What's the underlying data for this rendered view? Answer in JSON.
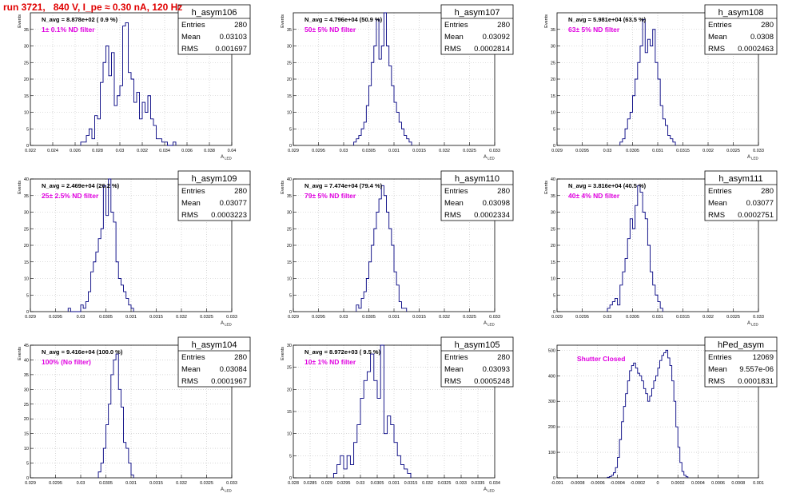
{
  "page": {
    "title": "run 3721,   840 V, I_pe ≈ 0.30 nA, 120 Hz"
  },
  "style": {
    "frame": "#000000",
    "hist": "#000080",
    "grid": "#bfbfbf",
    "annotation": "#e000e0",
    "title_red": "#e00000"
  },
  "chart_data": [
    {
      "type": "histogram",
      "name": "h_asym106",
      "stats": {
        "entries_label": "Entries",
        "entries": "280",
        "mean_label": "Mean",
        "mean": "0.03103",
        "rms_label": "RMS",
        "rms": "0.001697"
      },
      "avg_text": "N_avg = 8.878e+02 ( 0.9 %)",
      "filter_text": "1± 0.1% ND filter",
      "ylabel": "Events",
      "xlabel": "A_LED",
      "xlim": [
        0.022,
        0.04
      ],
      "ylim": [
        0,
        40
      ],
      "grid": true,
      "xticks": [
        0.022,
        0.024,
        0.026,
        0.028,
        0.03,
        0.032,
        0.034,
        0.036,
        0.038,
        0.04
      ],
      "xtick_labels": [
        "0.022",
        "0.024",
        "0.026",
        "0.028",
        "0.03",
        "0.032",
        "0.034",
        "0.036",
        "0.038",
        "0.04"
      ],
      "yticks": [
        0,
        5,
        10,
        15,
        20,
        25,
        30,
        35
      ],
      "ytick_labels": [
        "0",
        "5",
        "10",
        "15",
        "20",
        "25",
        "30",
        "35"
      ],
      "bin_start": 0.0265,
      "bin_width": 0.00025,
      "values": [
        1,
        1,
        3,
        5,
        2,
        9,
        8,
        19,
        25,
        30,
        21,
        28,
        12,
        15,
        18,
        36,
        37,
        22,
        20,
        13,
        16,
        8,
        13,
        10,
        15,
        8,
        6,
        2,
        2,
        1,
        1,
        0,
        0,
        1
      ]
    },
    {
      "type": "histogram",
      "name": "h_asym107",
      "stats": {
        "entries_label": "Entries",
        "entries": "280",
        "mean_label": "Mean",
        "mean": "0.03092",
        "rms_label": "RMS",
        "rms": "0.0002814"
      },
      "avg_text": "N_avg = 4.796e+04 (50.9 %)",
      "filter_text": "50± 5% ND filter",
      "ylabel": "Events",
      "xlabel": "A_LED",
      "xlim": [
        0.029,
        0.033
      ],
      "ylim": [
        0,
        40
      ],
      "grid": true,
      "xticks": [
        0.029,
        0.0295,
        0.03,
        0.0305,
        0.031,
        0.0315,
        0.032,
        0.0325,
        0.033
      ],
      "xtick_labels": [
        "0.029",
        "0.0295",
        "0.03",
        "0.0305",
        "0.031",
        "0.0315",
        "0.032",
        "0.0325",
        "0.033"
      ],
      "yticks": [
        0,
        5,
        10,
        15,
        20,
        25,
        30,
        35
      ],
      "ytick_labels": [
        "0",
        "5",
        "10",
        "15",
        "20",
        "25",
        "30",
        "35"
      ],
      "bin_start": 0.0302,
      "bin_width": 5e-05,
      "values": [
        1,
        2,
        3,
        5,
        7,
        12,
        18,
        25,
        30,
        38,
        26,
        30,
        40,
        30,
        24,
        18,
        13,
        10,
        7,
        5,
        3,
        2,
        1
      ]
    },
    {
      "type": "histogram",
      "name": "h_asym108",
      "stats": {
        "entries_label": "Entries",
        "entries": "280",
        "mean_label": "Mean",
        "mean": "0.0308",
        "rms_label": "RMS",
        "rms": "0.0002463"
      },
      "avg_text": "N_avg = 5.981e+04 (63.5 %)",
      "filter_text": "63± 5% ND filter",
      "ylabel": "Events",
      "xlabel": "A_LED",
      "xlim": [
        0.029,
        0.033
      ],
      "ylim": [
        0,
        40
      ],
      "grid": true,
      "xticks": [
        0.029,
        0.0295,
        0.03,
        0.0305,
        0.031,
        0.0315,
        0.032,
        0.0325,
        0.033
      ],
      "xtick_labels": [
        "0.029",
        "0.0295",
        "0.03",
        "0.0305",
        "0.031",
        "0.0315",
        "0.032",
        "0.0325",
        "0.033"
      ],
      "yticks": [
        0,
        5,
        10,
        15,
        20,
        25,
        30,
        35
      ],
      "ytick_labels": [
        "0",
        "5",
        "10",
        "15",
        "20",
        "25",
        "30",
        "35"
      ],
      "bin_start": 0.03025,
      "bin_width": 5e-05,
      "values": [
        1,
        2,
        5,
        8,
        10,
        15,
        20,
        25,
        30,
        38,
        28,
        32,
        30,
        35,
        25,
        20,
        12,
        8,
        6,
        3,
        2,
        1
      ]
    },
    {
      "type": "histogram",
      "name": "h_asym109",
      "stats": {
        "entries_label": "Entries",
        "entries": "280",
        "mean_label": "Mean",
        "mean": "0.03077",
        "rms_label": "RMS",
        "rms": "0.0003223"
      },
      "avg_text": "N_avg = 2.469e+04 (26.2 %)",
      "filter_text": "25± 2.5% ND filter",
      "ylabel": "Events",
      "xlabel": "A_LED",
      "xlim": [
        0.029,
        0.033
      ],
      "ylim": [
        0,
        40
      ],
      "grid": true,
      "xticks": [
        0.029,
        0.0295,
        0.03,
        0.0305,
        0.031,
        0.0315,
        0.032,
        0.0325,
        0.033
      ],
      "xtick_labels": [
        "0.029",
        "0.0295",
        "0.03",
        "0.0305",
        "0.031",
        "0.0315",
        "0.032",
        "0.0325",
        "0.033"
      ],
      "yticks": [
        0,
        5,
        10,
        15,
        20,
        25,
        30,
        35,
        40
      ],
      "ytick_labels": [
        "0",
        "5",
        "10",
        "15",
        "20",
        "25",
        "30",
        "35",
        "40"
      ],
      "bin_start": 0.02975,
      "bin_width": 5e-05,
      "values": [
        1,
        0,
        0,
        0,
        0,
        2,
        1,
        3,
        6,
        12,
        15,
        18,
        22,
        25,
        38,
        29,
        40,
        30,
        27,
        15,
        10,
        8,
        6,
        4,
        2,
        1
      ]
    },
    {
      "type": "histogram",
      "name": "h_asym110",
      "stats": {
        "entries_label": "Entries",
        "entries": "280",
        "mean_label": "Mean",
        "mean": "0.03098",
        "rms_label": "RMS",
        "rms": "0.0002334"
      },
      "avg_text": "N_avg = 7.474e+04 (79.4 %)",
      "filter_text": "79± 5% ND filter",
      "ylabel": "Events",
      "xlabel": "A_LED",
      "xlim": [
        0.029,
        0.033
      ],
      "ylim": [
        0,
        40
      ],
      "grid": true,
      "xticks": [
        0.029,
        0.0295,
        0.03,
        0.0305,
        0.031,
        0.0315,
        0.032,
        0.0325,
        0.033
      ],
      "xtick_labels": [
        "0.029",
        "0.0295",
        "0.03",
        "0.0305",
        "0.031",
        "0.0315",
        "0.032",
        "0.0325",
        "0.033"
      ],
      "yticks": [
        0,
        5,
        10,
        15,
        20,
        25,
        30,
        35,
        40
      ],
      "ytick_labels": [
        "0",
        "5",
        "10",
        "15",
        "20",
        "25",
        "30",
        "35",
        "40"
      ],
      "bin_start": 0.03025,
      "bin_width": 5e-05,
      "values": [
        2,
        1,
        4,
        6,
        10,
        15,
        20,
        25,
        30,
        34,
        38,
        35,
        30,
        25,
        20,
        12,
        8,
        3,
        1,
        1
      ]
    },
    {
      "type": "histogram",
      "name": "h_asym111",
      "stats": {
        "entries_label": "Entries",
        "entries": "280",
        "mean_label": "Mean",
        "mean": "0.03077",
        "rms_label": "RMS",
        "rms": "0.0002751"
      },
      "avg_text": "N_avg = 3.816e+04 (40.5 %)",
      "filter_text": "40± 4% ND filter",
      "ylabel": "Events",
      "xlabel": "A_LED",
      "xlim": [
        0.029,
        0.033
      ],
      "ylim": [
        0,
        40
      ],
      "grid": true,
      "xticks": [
        0.029,
        0.0295,
        0.03,
        0.0305,
        0.031,
        0.0315,
        0.032,
        0.0325,
        0.033
      ],
      "xtick_labels": [
        "0.029",
        "0.0295",
        "0.03",
        "0.0305",
        "0.031",
        "0.0315",
        "0.032",
        "0.0325",
        "0.033"
      ],
      "yticks": [
        0,
        5,
        10,
        15,
        20,
        25,
        30,
        35,
        40
      ],
      "ytick_labels": [
        "0",
        "5",
        "10",
        "15",
        "20",
        "25",
        "30",
        "35",
        "40"
      ],
      "bin_start": 0.03,
      "bin_width": 5e-05,
      "values": [
        1,
        2,
        3,
        4,
        2,
        8,
        12,
        16,
        22,
        28,
        25,
        32,
        38,
        36,
        30,
        28,
        20,
        12,
        8,
        5,
        3,
        1
      ]
    },
    {
      "type": "histogram",
      "name": "h_asym104",
      "stats": {
        "entries_label": "Entries",
        "entries": "280",
        "mean_label": "Mean",
        "mean": "0.03084",
        "rms_label": "RMS",
        "rms": "0.0001967"
      },
      "avg_text": "N_avg = 9.416e+04 (100.0 %)",
      "filter_text": "100% (No filter)",
      "ylabel": "Events",
      "xlabel": "A_LED",
      "xlim": [
        0.029,
        0.033
      ],
      "ylim": [
        0,
        45
      ],
      "grid": true,
      "xticks": [
        0.029,
        0.0295,
        0.03,
        0.0305,
        0.031,
        0.0315,
        0.032,
        0.0325,
        0.033
      ],
      "xtick_labels": [
        "0.029",
        "0.0295",
        "0.03",
        "0.0305",
        "0.031",
        "0.0315",
        "0.032",
        "0.0325",
        "0.033"
      ],
      "yticks": [
        0,
        5,
        10,
        15,
        20,
        25,
        30,
        35,
        40,
        45
      ],
      "ytick_labels": [
        "0",
        "5",
        "10",
        "15",
        "20",
        "25",
        "30",
        "35",
        "40",
        "45"
      ],
      "bin_start": 0.03035,
      "bin_width": 5e-05,
      "values": [
        2,
        5,
        10,
        18,
        25,
        35,
        40,
        42,
        30,
        24,
        12,
        10,
        5,
        1
      ]
    },
    {
      "type": "histogram",
      "name": "h_asym105",
      "stats": {
        "entries_label": "Entries",
        "entries": "280",
        "mean_label": "Mean",
        "mean": "0.03093",
        "rms_label": "RMS",
        "rms": "0.0005248"
      },
      "avg_text": "N_avg = 8.972e+03 ( 9.5 %)",
      "filter_text": "10± 1% ND filter",
      "ylabel": "Events",
      "xlabel": "A_LED",
      "xlim": [
        0.028,
        0.034
      ],
      "ylim": [
        0,
        30
      ],
      "grid": true,
      "xticks": [
        0.028,
        0.0285,
        0.029,
        0.0295,
        0.03,
        0.0305,
        0.031,
        0.0315,
        0.032,
        0.0325,
        0.033,
        0.0335,
        0.034
      ],
      "xtick_labels": [
        "0.028",
        "0.0285",
        "0.029",
        "0.0295",
        "0.03",
        "0.0305",
        "0.031",
        "0.0315",
        "0.032",
        "0.0325",
        "0.033",
        "0.0335",
        "0.034"
      ],
      "yticks": [
        0,
        5,
        10,
        15,
        20,
        25,
        30
      ],
      "ytick_labels": [
        "0",
        "5",
        "10",
        "15",
        "20",
        "25",
        "30"
      ],
      "bin_start": 0.0292,
      "bin_width": 0.0001,
      "values": [
        1,
        3,
        5,
        2,
        5,
        3,
        8,
        12,
        18,
        22,
        24,
        28,
        22,
        18,
        30,
        10,
        14,
        12,
        8,
        5,
        3,
        2,
        1
      ]
    },
    {
      "type": "histogram",
      "name": "hPed_asym",
      "stats": {
        "entries_label": "Entries",
        "entries": "12069",
        "mean_label": "Mean",
        "mean": "9.557e-06",
        "rms_label": "RMS",
        "rms": "0.0001831"
      },
      "avg_text": "",
      "filter_text": "Shutter Closed",
      "ylabel": "",
      "xlabel": "",
      "xlim": [
        -0.001,
        0.001
      ],
      "ylim": [
        0,
        520
      ],
      "grid": true,
      "xticks": [
        -0.001,
        -0.0008,
        -0.0006,
        -0.0004,
        -0.0002,
        0,
        0.0002,
        0.0004,
        0.0006,
        0.0008,
        0.001
      ],
      "xtick_labels": [
        "-0.001",
        "-0.0008",
        "-0.0006",
        "-0.0004",
        "-0.0002",
        "0",
        "0.0002",
        "0.0004",
        "0.0006",
        "0.0008",
        "0.001"
      ],
      "yticks": [
        0,
        100,
        200,
        300,
        400,
        500
      ],
      "ytick_labels": [
        "0",
        "100",
        "200",
        "300",
        "400",
        "500"
      ],
      "bin_start": -0.0005,
      "bin_width": 2e-05,
      "values": [
        2,
        5,
        10,
        20,
        40,
        80,
        150,
        220,
        280,
        330,
        380,
        420,
        440,
        450,
        430,
        410,
        400,
        380,
        350,
        330,
        300,
        320,
        350,
        380,
        400,
        430,
        460,
        480,
        490,
        500,
        470,
        440,
        380,
        300,
        200,
        120,
        60,
        25,
        10,
        4
      ]
    }
  ]
}
